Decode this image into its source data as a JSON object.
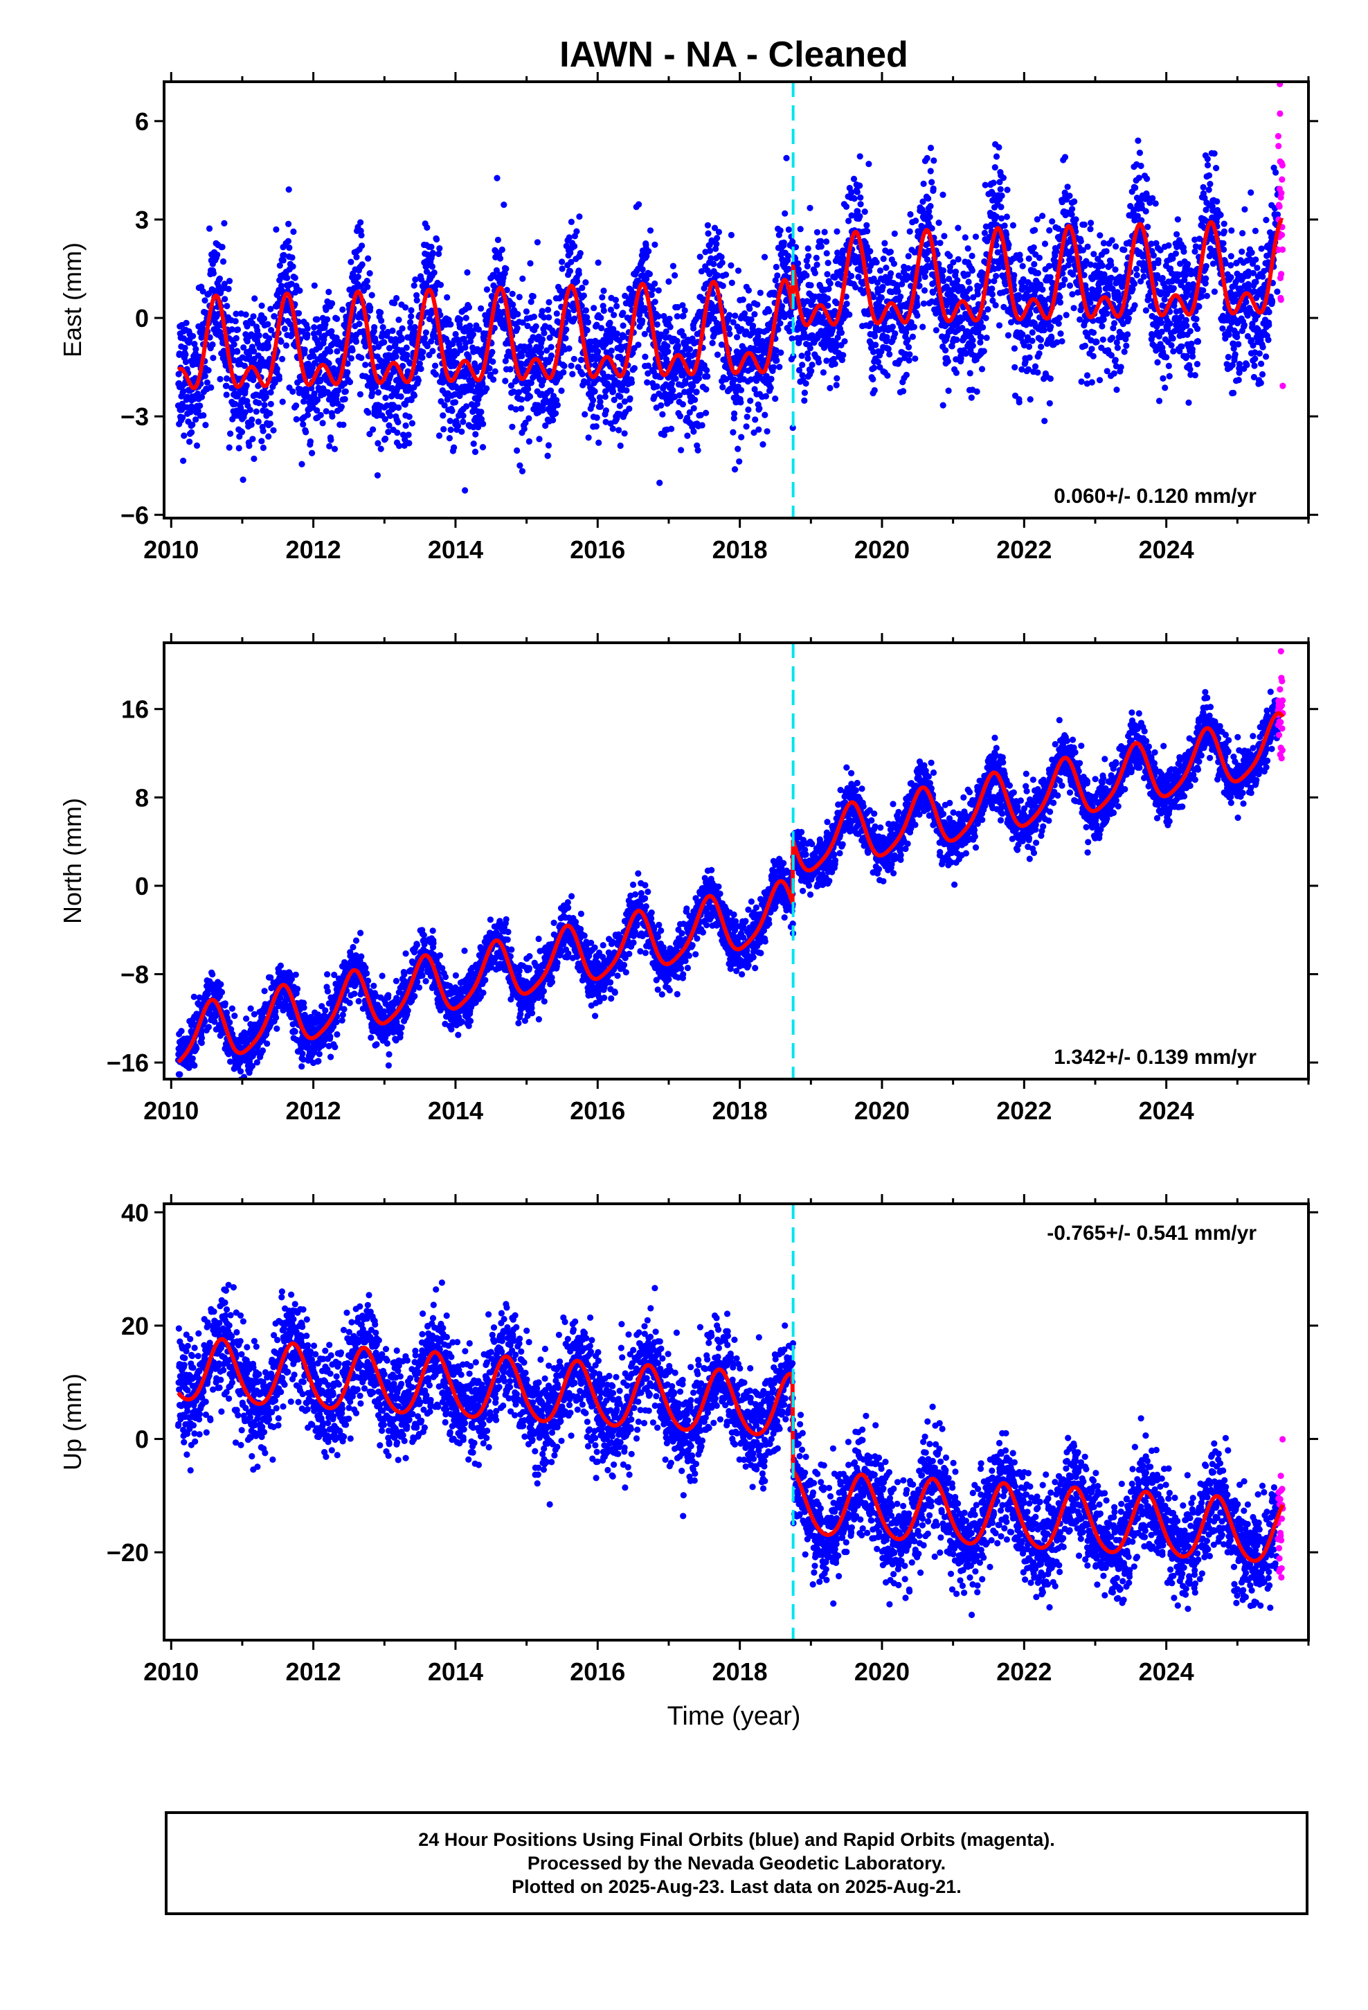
{
  "title": "IAWN  - NA - Cleaned",
  "xlabel": "Time (year)",
  "footer": {
    "line1": "24 Hour Positions Using Final Orbits (blue) and Rapid Orbits (magenta).",
    "line2": "Processed by the Nevada Geodetic Laboratory.",
    "line3": "Plotted on 2025-Aug-23. Last data on 2025-Aug-21."
  },
  "colors": {
    "final_orbits": "#0000ff",
    "rapid_orbits": "#ff00ff",
    "model_fit": "#ff0000",
    "break_line": "#00e5ee",
    "axes": "#000000"
  },
  "chart_data": [
    {
      "type": "scatter",
      "ylabel": "East (mm)",
      "xlim": [
        2009.9,
        2026.0
      ],
      "ylim": [
        -6.1,
        7.2
      ],
      "xticks": [
        2010,
        2012,
        2014,
        2016,
        2018,
        2020,
        2022,
        2024
      ],
      "xtick_labels": [
        "2010",
        "2012",
        "2014",
        "2016",
        "2018",
        "2020",
        "2022",
        "2024"
      ],
      "yticks": [
        -6,
        -3,
        0,
        3,
        6
      ],
      "ytick_labels": [
        "−6",
        "−3",
        "0",
        "3",
        "6"
      ],
      "rate_label": "0.060+/- 0.120 mm/yr",
      "rate_position": "bottom-right",
      "break_year": 2018.75,
      "data_span": [
        2010.1,
        2025.64
      ],
      "rapid_span": [
        2025.57,
        2025.64
      ],
      "model": {
        "offset": -1.2,
        "trend_per_yr": 0.06,
        "step_at_break": 1.4,
        "annual_amp": 1.1,
        "annual_phase_peak": 0.63,
        "semiannual_amp": 0.75,
        "semiannual_phase_peak": 0.63
      },
      "scatter_sigma": 1.05,
      "series": [
        {
          "name": "Final Orbits",
          "color": "#0000ff"
        },
        {
          "name": "Rapid Orbits",
          "color": "#ff00ff"
        }
      ]
    },
    {
      "type": "scatter",
      "ylabel": "North (mm)",
      "xlim": [
        2009.9,
        2026.0
      ],
      "ylim": [
        -17.5,
        22.0
      ],
      "xticks": [
        2010,
        2012,
        2014,
        2016,
        2018,
        2020,
        2022,
        2024
      ],
      "xtick_labels": [
        "2010",
        "2012",
        "2014",
        "2016",
        "2018",
        "2020",
        "2022",
        "2024"
      ],
      "yticks": [
        -16,
        -8,
        0,
        8,
        16
      ],
      "ytick_labels": [
        "−16",
        "−8",
        "0",
        "8",
        "16"
      ],
      "rate_label": "1.342+/- 0.139 mm/yr",
      "rate_position": "bottom-right",
      "break_year": 2018.75,
      "data_span": [
        2010.1,
        2025.64
      ],
      "rapid_span": [
        2025.57,
        2025.64
      ],
      "model": {
        "offset": -14.0,
        "trend_per_yr": 1.342,
        "step_at_break": 5.8,
        "annual_amp": 2.6,
        "annual_phase_peak": 0.55,
        "semiannual_amp": 0.5,
        "semiannual_phase_peak": 0.1
      },
      "scatter_sigma": 1.2,
      "series": [
        {
          "name": "Final Orbits",
          "color": "#0000ff"
        },
        {
          "name": "Rapid Orbits",
          "color": "#ff00ff"
        }
      ]
    },
    {
      "type": "scatter",
      "ylabel": "Up (mm)",
      "xlim": [
        2009.9,
        2026.0
      ],
      "ylim": [
        -35.5,
        41.5
      ],
      "xticks": [
        2010,
        2012,
        2014,
        2016,
        2018,
        2020,
        2022,
        2024
      ],
      "xtick_labels": [
        "2010",
        "2012",
        "2014",
        "2016",
        "2018",
        "2020",
        "2022",
        "2024"
      ],
      "yticks": [
        -20,
        0,
        20,
        40
      ],
      "ytick_labels": [
        "−20",
        "0",
        "20",
        "40"
      ],
      "rate_label": "-0.765+/- 0.541 mm/yr",
      "rate_position": "top-right",
      "break_year": 2018.75,
      "data_span": [
        2010.1,
        2025.64
      ],
      "rapid_span": [
        2025.57,
        2025.64
      ],
      "model": {
        "offset": 12.0,
        "trend_per_yr": -0.765,
        "step_at_break": -17.0,
        "annual_amp": 5.5,
        "annual_phase_peak": 0.72,
        "semiannual_amp": 0.6,
        "semiannual_phase_peak": 0.2
      },
      "scatter_sigma": 4.5,
      "series": [
        {
          "name": "Final Orbits",
          "color": "#0000ff"
        },
        {
          "name": "Rapid Orbits",
          "color": "#ff00ff"
        }
      ]
    }
  ]
}
